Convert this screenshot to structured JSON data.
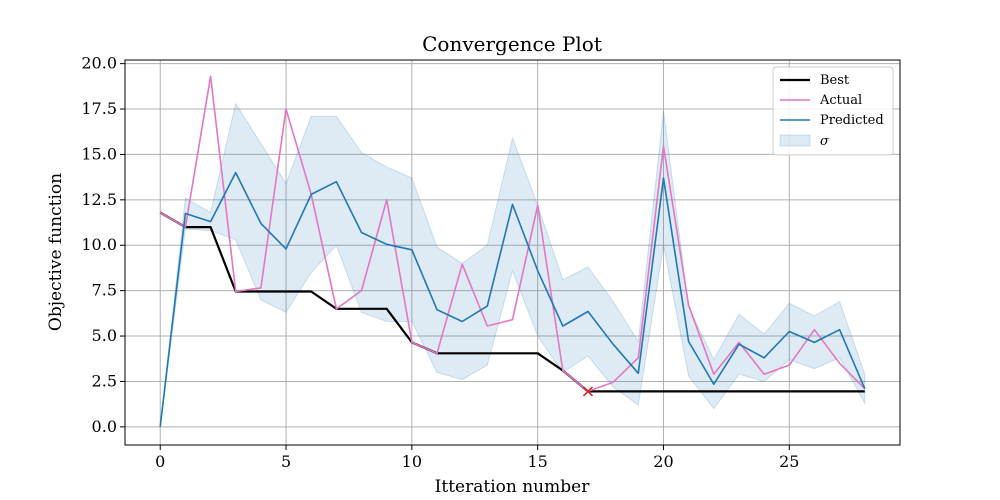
{
  "chart_data": {
    "type": "line",
    "title": "Convergence Plot",
    "xlabel": "Itteration number",
    "ylabel": "Objective function",
    "xlim": [
      -1.4,
      29.4
    ],
    "ylim": [
      -1.0,
      20.2
    ],
    "xticks": [
      0,
      5,
      10,
      15,
      20,
      25
    ],
    "xtick_labels": [
      "0",
      "5",
      "10",
      "15",
      "20",
      "25"
    ],
    "yticks": [
      0,
      2.5,
      5,
      7.5,
      10,
      12.5,
      15,
      17.5,
      20
    ],
    "ytick_labels": [
      "0.0",
      "2.5",
      "5.0",
      "7.5",
      "10.0",
      "12.5",
      "15.0",
      "17.5",
      "20.0"
    ],
    "grid": true,
    "legend_position": "top-right",
    "x": [
      0,
      1,
      2,
      3,
      4,
      5,
      6,
      7,
      8,
      9,
      10,
      11,
      12,
      13,
      14,
      15,
      16,
      17,
      18,
      19,
      20,
      21,
      22,
      23,
      24,
      25,
      26,
      27,
      28
    ],
    "series": [
      {
        "name": "Best",
        "color": "#000000",
        "values": [
          11.8,
          11.0,
          11.0,
          7.45,
          7.45,
          7.45,
          7.45,
          6.5,
          6.5,
          6.5,
          4.65,
          4.05,
          4.05,
          4.05,
          4.05,
          4.05,
          3.1,
          1.95,
          1.95,
          1.95,
          1.95,
          1.95,
          1.95,
          1.95,
          1.95,
          1.95,
          1.95,
          1.95,
          1.95
        ]
      },
      {
        "name": "Actual",
        "color": "#e377c2",
        "values": [
          11.8,
          11.0,
          19.3,
          7.45,
          7.65,
          17.5,
          12.8,
          6.5,
          7.5,
          12.5,
          4.65,
          4.05,
          8.95,
          5.55,
          5.9,
          12.2,
          3.1,
          1.95,
          2.45,
          3.8,
          15.45,
          6.7,
          2.9,
          4.65,
          2.9,
          3.4,
          5.35,
          3.5,
          2.1
        ]
      },
      {
        "name": "Predicted",
        "color": "#1f77b4",
        "values": [
          0.0,
          11.75,
          11.3,
          14.0,
          11.2,
          9.8,
          12.8,
          13.5,
          10.7,
          10.05,
          9.75,
          6.45,
          5.8,
          6.65,
          12.25,
          8.6,
          5.55,
          6.35,
          4.55,
          2.95,
          13.7,
          4.7,
          2.35,
          4.55,
          3.8,
          5.25,
          4.65,
          5.35,
          2.1
        ]
      }
    ],
    "sigma": {
      "name": "σ",
      "color": "#1f77b4",
      "upper": [
        0.0,
        12.6,
        11.8,
        17.8,
        15.6,
        13.4,
        17.1,
        17.1,
        15.1,
        14.3,
        13.7,
        9.9,
        9.0,
        10.0,
        15.9,
        12.2,
        8.1,
        8.8,
        6.9,
        4.7,
        17.4,
        6.6,
        3.7,
        6.2,
        5.1,
        6.8,
        6.1,
        6.9,
        2.9
      ],
      "lower": [
        0.0,
        10.9,
        10.8,
        10.3,
        7.0,
        6.3,
        8.5,
        10.0,
        6.3,
        5.8,
        5.8,
        3.0,
        2.6,
        3.4,
        8.6,
        5.0,
        3.0,
        3.9,
        2.2,
        1.2,
        10.0,
        2.8,
        1.0,
        2.9,
        2.5,
        3.7,
        3.2,
        3.8,
        1.3
      ]
    },
    "marker": {
      "label": "Best point",
      "x": 17,
      "y": 1.95,
      "color": "#d62728",
      "symbol": "x"
    }
  }
}
